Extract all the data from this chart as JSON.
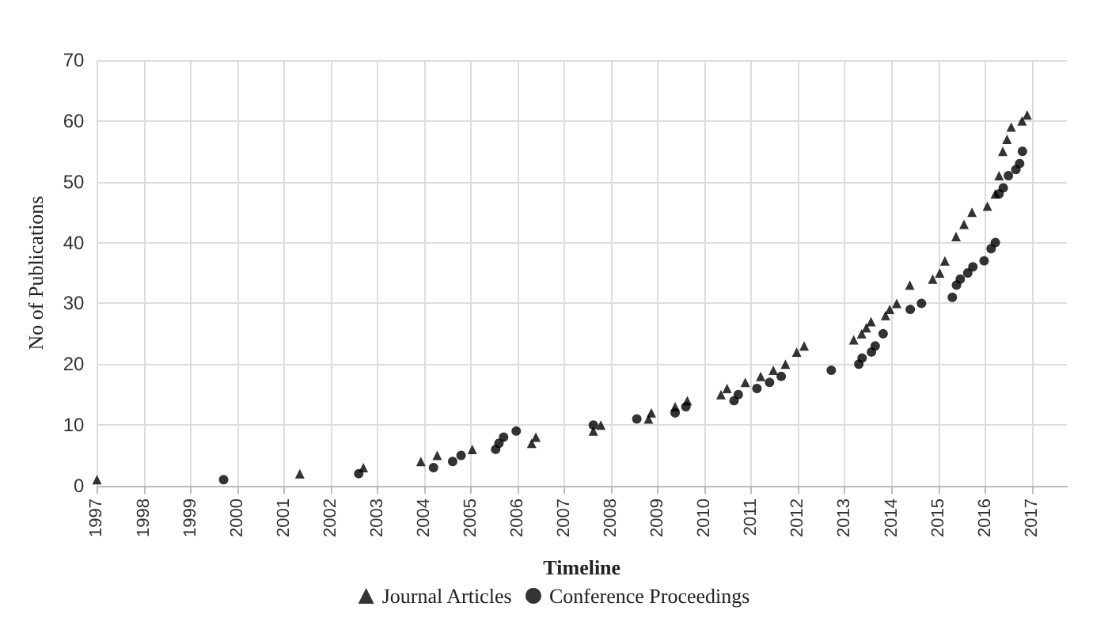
{
  "chart_data": {
    "type": "scatter",
    "xlabel": "Timeline",
    "ylabel": "No of Publications",
    "xlim": [
      1997,
      2017.75
    ],
    "xticks": [
      1997,
      1998,
      1999,
      2000,
      2001,
      2002,
      2003,
      2004,
      2005,
      2006,
      2007,
      2008,
      2009,
      2010,
      2011,
      2012,
      2013,
      2014,
      2015,
      2016,
      2017
    ],
    "ylim": [
      0,
      70
    ],
    "yticks": [
      0,
      10,
      20,
      30,
      40,
      50,
      60,
      70
    ],
    "grid": true,
    "legend": "bottom",
    "series": [
      {
        "name": "Journal Articles",
        "color": "#000000",
        "marker": "triangle",
        "x": [
          1997.0,
          2001.34,
          2002.7,
          2003.93,
          2004.28,
          2005.03,
          2006.3,
          2006.39,
          2007.62,
          2007.78,
          2008.8,
          2008.86,
          2009.37,
          2009.63,
          2010.35,
          2010.48,
          2010.87,
          2011.2,
          2011.47,
          2011.73,
          2011.97,
          2012.13,
          2013.19,
          2013.36,
          2013.46,
          2013.56,
          2013.87,
          2013.96,
          2014.11,
          2014.39,
          2014.88,
          2015.03,
          2015.14,
          2015.38,
          2015.55,
          2015.72,
          2016.05,
          2016.22,
          2016.3,
          2016.38,
          2016.47,
          2016.56,
          2016.79,
          2016.9
        ],
        "values": [
          1,
          2,
          3,
          4,
          5,
          6,
          7,
          8,
          9,
          10,
          11,
          12,
          13,
          14,
          15,
          16,
          17,
          18,
          19,
          20,
          22,
          23,
          24,
          25,
          26,
          27,
          28,
          29,
          30,
          33,
          34,
          35,
          37,
          41,
          43,
          45,
          46,
          48,
          51,
          55,
          57,
          59,
          60,
          61
        ]
      },
      {
        "name": "Conference Proceedings",
        "color": "#000000",
        "marker": "circle",
        "x": [
          1999.71,
          2002.6,
          2004.2,
          2004.61,
          2004.79,
          2005.53,
          2005.6,
          2005.7,
          2005.97,
          2007.62,
          2008.55,
          2009.37,
          2009.6,
          2010.63,
          2010.72,
          2011.12,
          2011.39,
          2011.64,
          2012.71,
          2013.3,
          2013.37,
          2013.57,
          2013.65,
          2013.82,
          2014.4,
          2014.64,
          2015.3,
          2015.39,
          2015.47,
          2015.63,
          2015.74,
          2015.98,
          2016.13,
          2016.22,
          2016.3,
          2016.39,
          2016.5,
          2016.66,
          2016.74,
          2016.8
        ],
        "values": [
          1,
          2,
          3,
          4,
          5,
          6,
          7,
          8,
          9,
          10,
          11,
          12,
          13,
          14,
          15,
          16,
          17,
          18,
          19,
          20,
          21,
          22,
          23,
          25,
          29,
          30,
          31,
          33,
          34,
          35,
          36,
          37,
          39,
          40,
          48,
          49,
          51,
          52,
          53,
          55
        ]
      }
    ]
  }
}
